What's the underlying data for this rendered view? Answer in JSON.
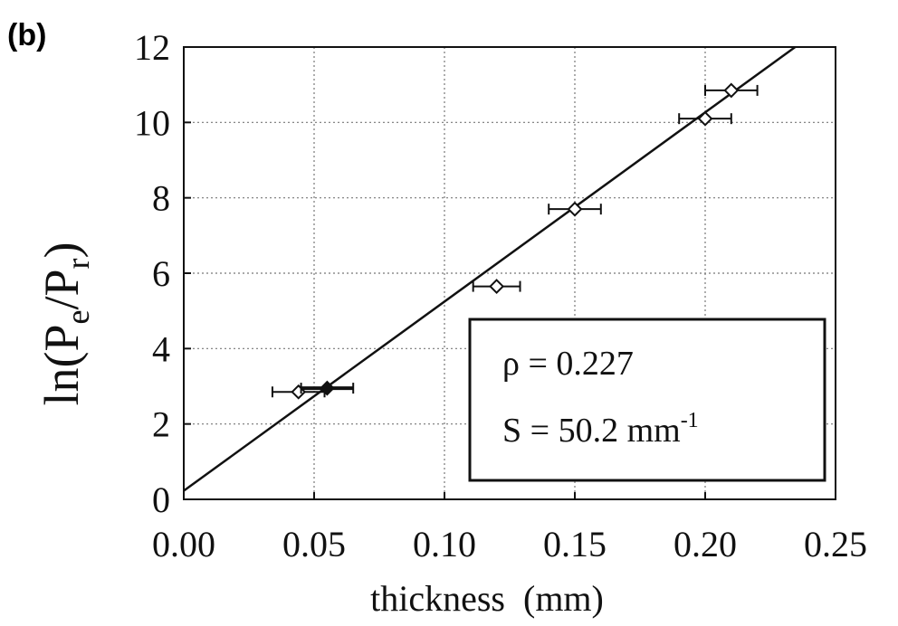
{
  "panel_label": "(b)",
  "chart_data": {
    "type": "scatter",
    "title": "",
    "xlabel": "thickness  (mm)",
    "ylabel": {
      "prefix": "ln(P",
      "sub1": "e",
      "mid": "/P",
      "sub2": "r",
      "suffix": ")"
    },
    "xlim": [
      0,
      0.25
    ],
    "ylim": [
      0,
      12
    ],
    "x_ticks": [
      0,
      0.05,
      0.1,
      0.15,
      0.2,
      0.25
    ],
    "x_tick_labels": [
      "0.00",
      "0.05",
      "0.10",
      "0.15",
      "0.20",
      "0.25"
    ],
    "y_ticks": [
      0,
      2,
      4,
      6,
      8,
      10,
      12
    ],
    "y_tick_labels": [
      "0",
      "2",
      "4",
      "6",
      "8",
      "10",
      "12"
    ],
    "grid": true,
    "grid_style": "dotted",
    "series": [
      {
        "marker": "open-diamond",
        "points": [
          {
            "x": 0.044,
            "y": 2.85,
            "xerr": 0.01
          },
          {
            "x": 0.12,
            "y": 5.65,
            "xerr": 0.009
          },
          {
            "x": 0.15,
            "y": 7.7,
            "xerr": 0.01
          },
          {
            "x": 0.2,
            "y": 10.1,
            "xerr": 0.01
          },
          {
            "x": 0.21,
            "y": 10.85,
            "xerr": 0.01
          }
        ]
      },
      {
        "marker": "filled-diamond",
        "points": [
          {
            "x": 0.055,
            "y": 2.95,
            "xerr": 0.01
          }
        ]
      }
    ],
    "fit_line": {
      "intercept": 0.227,
      "slope": 50.2,
      "x_range": [
        0,
        0.25
      ]
    },
    "annotation": {
      "line1": "ρ = 0.227",
      "line2_main": "S = 50.2 mm",
      "line2_sup": "-1",
      "placement": "bottom-right"
    }
  }
}
